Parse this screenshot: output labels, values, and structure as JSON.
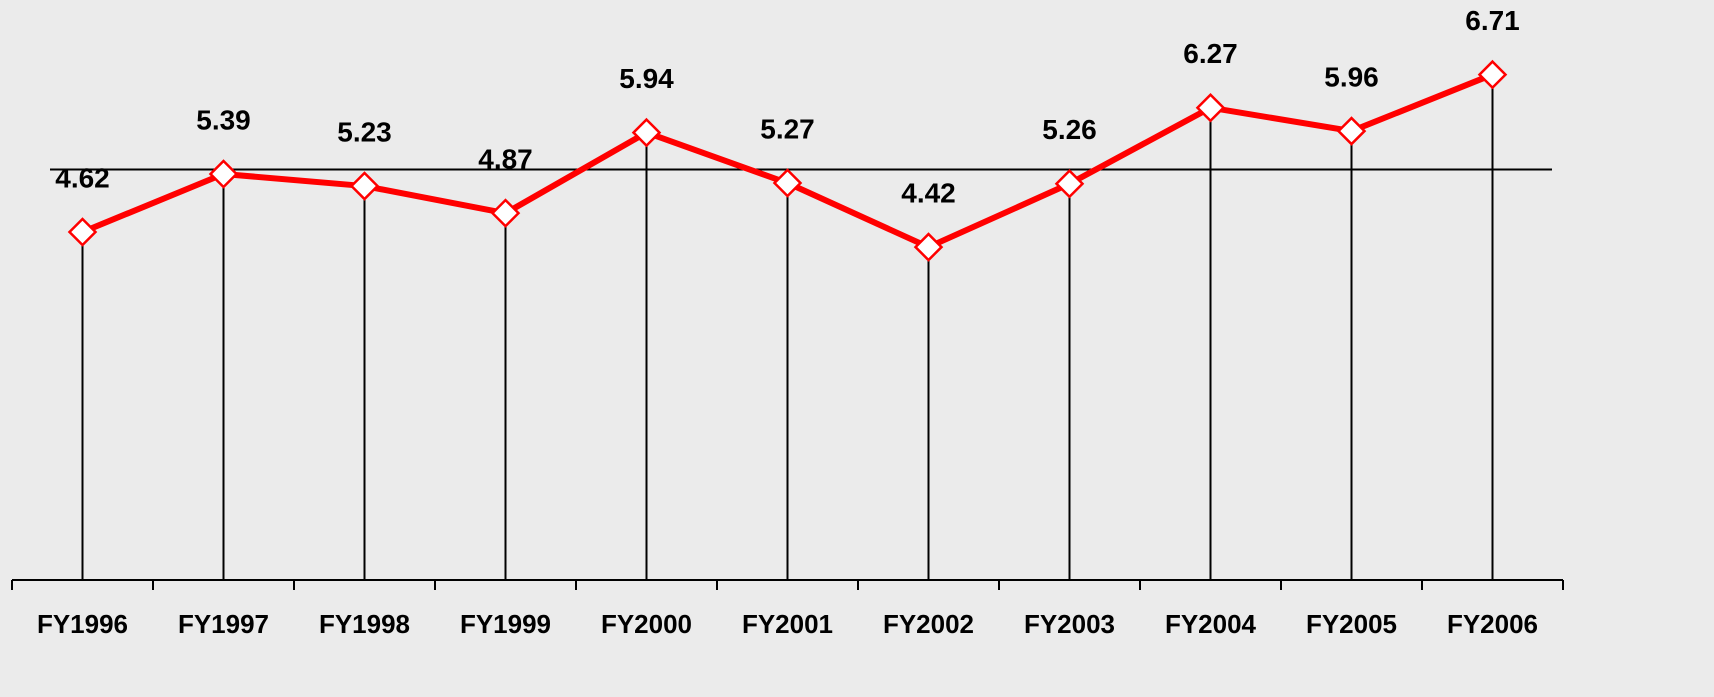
{
  "chart_data": {
    "type": "line",
    "categories": [
      "FY1996",
      "FY1997",
      "FY1998",
      "FY1999",
      "FY2000",
      "FY2001",
      "FY2002",
      "FY2003",
      "FY2004",
      "FY2005",
      "FY2006"
    ],
    "series": [
      {
        "color": "#ff0000",
        "values": [
          4.62,
          5.39,
          5.23,
          4.87,
          5.94,
          5.27,
          4.42,
          5.26,
          6.27,
          5.96,
          6.71
        ]
      }
    ],
    "ylim": [
      0,
      7.7
    ],
    "reference_line": 5.45
  }
}
